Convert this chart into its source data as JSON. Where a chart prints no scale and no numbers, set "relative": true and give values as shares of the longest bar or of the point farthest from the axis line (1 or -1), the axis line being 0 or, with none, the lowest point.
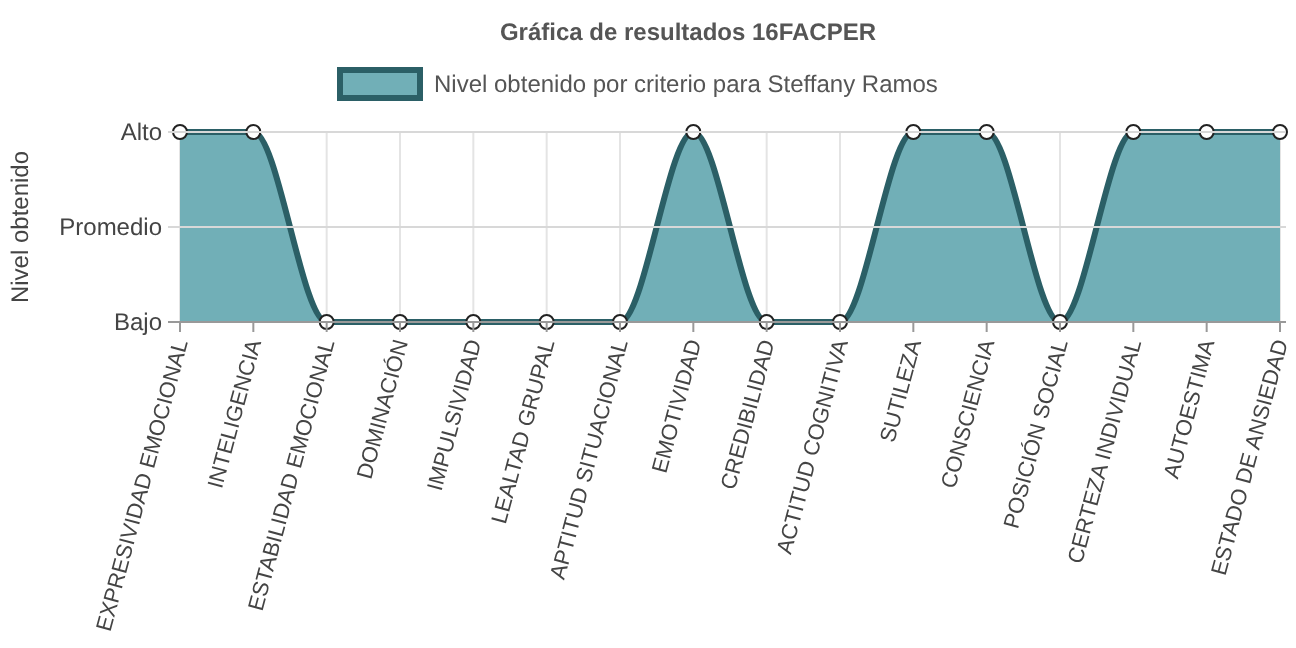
{
  "chart_data": {
    "type": "area",
    "title": "Gráfica de resultados 16FACPER",
    "ylabel": "Nivel obtenido",
    "relative": true,
    "categories": [
      "EXPRESIVIDAD EMOCIONAL",
      "INTELIGENCIA",
      "ESTABILIDAD EMOCIONAL",
      "DOMINACIÓN",
      "IMPULSIVIDAD",
      "LEALTAD GRUPAL",
      "APTITUD SITUACIONAL",
      "EMOTIVIDAD",
      "CREDIBILIDAD",
      "ACTITUD COGNITIVA",
      "SUTILEZA",
      "CONSCIENCIA",
      "POSICIÓN SOCIAL",
      "CERTEZA INDIVIDUAL",
      "AUTOESTIMA",
      "ESTADO DE ANSIEDAD"
    ],
    "series": [
      {
        "name": "Nivel obtenido por criterio para Steffany Ramos",
        "color": "#2b5f66",
        "values": [
          1,
          1,
          0,
          0,
          0,
          0,
          0,
          1,
          0,
          0,
          1,
          1,
          0,
          1,
          1,
          1
        ]
      }
    ],
    "annotations": [
      "Bajo",
      "Promedio",
      "Alto"
    ],
    "ref_lines": [
      {
        "axis": "y",
        "value": 0.5,
        "color": "#d8d8d8"
      }
    ],
    "grid": true,
    "legend": "top",
    "marker": "circle",
    "line_style": "solid"
  }
}
